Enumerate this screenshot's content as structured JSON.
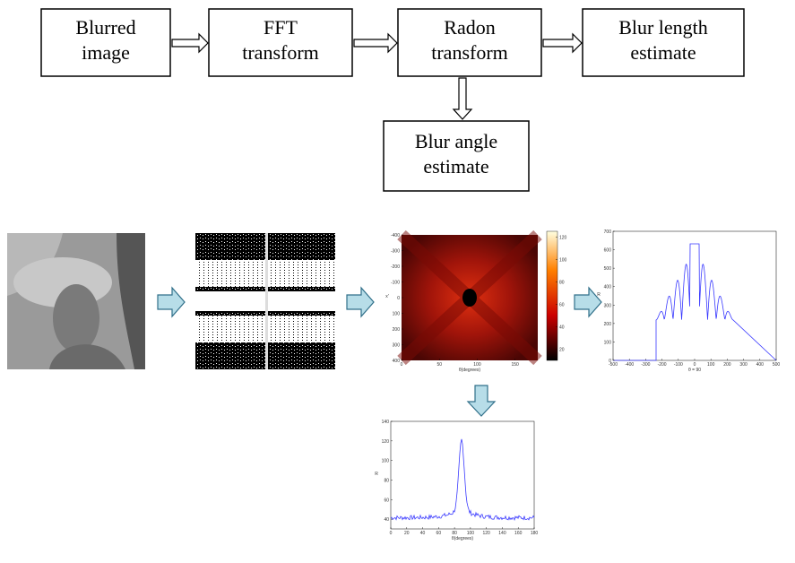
{
  "nodes": [
    {
      "lines": [
        "Blurred",
        "image"
      ]
    },
    {
      "lines": [
        "FFT",
        "transform"
      ]
    },
    {
      "lines": [
        "Radon",
        "transform"
      ]
    },
    {
      "lines": [
        "Blur length",
        "estimate"
      ]
    },
    {
      "lines": [
        "Blur angle",
        "estimate"
      ]
    }
  ],
  "plots": {
    "radon": {
      "xlim": [
        0,
        180
      ],
      "ylim": [
        -400,
        400
      ],
      "xticks": [
        0,
        50,
        100,
        150
      ],
      "yticks": [
        -400,
        -300,
        -200,
        -100,
        0,
        100,
        200,
        300,
        400
      ],
      "colorbar_lim": [
        10,
        125
      ],
      "colorbar_ticks": [
        20,
        40,
        60,
        80,
        100,
        120
      ],
      "xlabel": "θ(degrees)",
      "ylabel": "x'"
    },
    "length": {
      "xlim": [
        -500,
        500
      ],
      "ylim": [
        0,
        700
      ],
      "xticks": [
        -500,
        -400,
        -300,
        -200,
        -100,
        0,
        100,
        200,
        300,
        400,
        500
      ],
      "yticks": [
        0,
        100,
        200,
        300,
        400,
        500,
        600,
        700
      ],
      "xlabel": "θ = 90",
      "ylabel": "R"
    },
    "angle": {
      "xlim": [
        0,
        180
      ],
      "ylim": [
        30,
        140
      ],
      "xticks": [
        0,
        20,
        40,
        60,
        80,
        100,
        120,
        140,
        160,
        180
      ],
      "yticks": [
        40,
        60,
        80,
        100,
        120,
        140
      ],
      "xlabel": "θ(degrees)",
      "ylabel": "R"
    }
  }
}
